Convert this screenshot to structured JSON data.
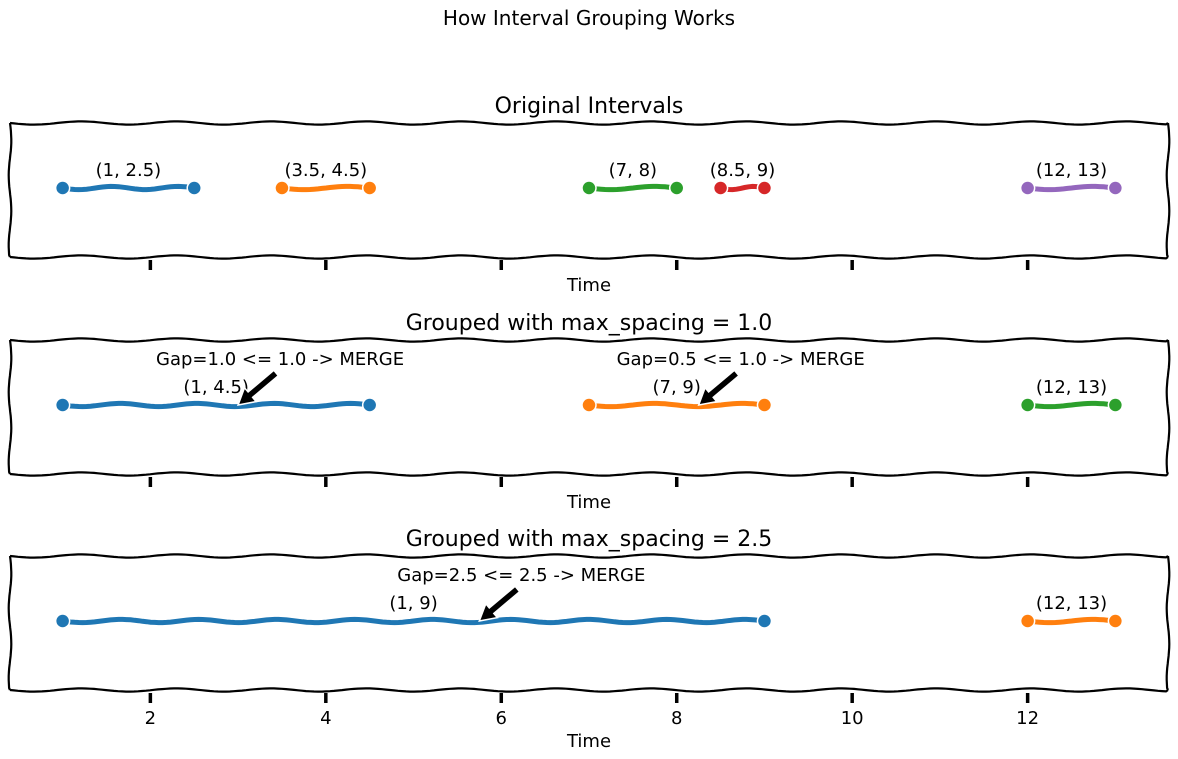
{
  "title": "How Interval Grouping Works",
  "chart_data": [
    {
      "type": "line",
      "title": "Original Intervals",
      "xlabel": "Time",
      "xlim": [
        0.4,
        13.6
      ],
      "xticks": [
        2,
        4,
        6,
        8,
        10,
        12
      ],
      "show_tick_labels": false,
      "intervals": [
        {
          "start": 1,
          "end": 2.5,
          "label": "(1, 2.5)",
          "color": "#1f77b4"
        },
        {
          "start": 3.5,
          "end": 4.5,
          "label": "(3.5, 4.5)",
          "color": "#ff7f0e"
        },
        {
          "start": 7,
          "end": 8,
          "label": "(7, 8)",
          "color": "#2ca02c"
        },
        {
          "start": 8.5,
          "end": 9,
          "label": "(8.5, 9)",
          "color": "#d62728"
        },
        {
          "start": 12,
          "end": 13,
          "label": "(12, 13)",
          "color": "#9467bd"
        }
      ],
      "annotations": []
    },
    {
      "type": "line",
      "title": "Grouped with max_spacing = 1.0",
      "xlabel": "Time",
      "xlim": [
        0.4,
        13.6
      ],
      "xticks": [
        2,
        4,
        6,
        8,
        10,
        12
      ],
      "show_tick_labels": false,
      "intervals": [
        {
          "start": 1,
          "end": 4.5,
          "label": "(1, 4.5)",
          "color": "#1f77b4"
        },
        {
          "start": 7,
          "end": 9,
          "label": "(7, 9)",
          "color": "#ff7f0e"
        },
        {
          "start": 12,
          "end": 13,
          "label": "(12, 13)",
          "color": "#2ca02c"
        }
      ],
      "annotations": [
        {
          "text": "Gap=1.0 <= 1.0 -> MERGE",
          "target_x": 3.0
        },
        {
          "text": "Gap=0.5 <= 1.0 -> MERGE",
          "target_x": 8.25
        }
      ]
    },
    {
      "type": "line",
      "title": "Grouped with max_spacing = 2.5",
      "xlabel": "Time",
      "xlim": [
        0.4,
        13.6
      ],
      "xticks": [
        2,
        4,
        6,
        8,
        10,
        12
      ],
      "show_tick_labels": true,
      "intervals": [
        {
          "start": 1,
          "end": 9,
          "label": "(1, 9)",
          "color": "#1f77b4"
        },
        {
          "start": 12,
          "end": 13,
          "label": "(12, 13)",
          "color": "#ff7f0e"
        }
      ],
      "annotations": [
        {
          "text": "Gap=2.5 <= 2.5 -> MERGE",
          "target_x": 5.75
        }
      ]
    }
  ]
}
